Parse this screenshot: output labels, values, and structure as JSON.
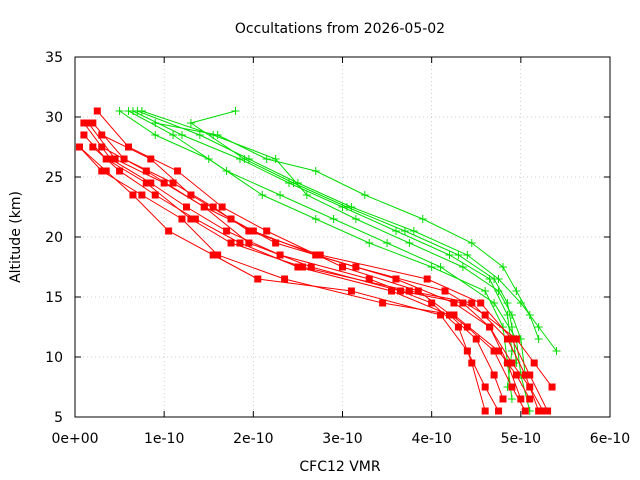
{
  "chart_data": {
    "type": "line",
    "title": "Occultations from 2026-05-02",
    "xlabel": "CFC12 VMR",
    "ylabel": "Altitude (km)",
    "xlim": [
      0,
      6e-10
    ],
    "ylim": [
      5,
      35
    ],
    "x_ticks": [
      "0e+00",
      "1e-10",
      "2e-10",
      "3e-10",
      "4e-10",
      "5e-10",
      "6e-10"
    ],
    "x_tick_values": [
      0,
      1e-10,
      2e-10,
      3e-10,
      4e-10,
      5e-10,
      6e-10
    ],
    "y_ticks": [
      "5",
      "10",
      "15",
      "20",
      "25",
      "30",
      "35"
    ],
    "y_tick_values": [
      5,
      10,
      15,
      20,
      25,
      30,
      35
    ],
    "grid": true,
    "colors": {
      "red_series": "#ff0000",
      "green_series": "#00dd00",
      "axes": "#000000"
    },
    "red_series_marker": "square",
    "green_series_marker": "plus",
    "red_series": [
      {
        "x": [
          5.3e-10,
          5.1e-10,
          4.9e-10,
          4.55e-10,
          3.95e-10,
          2.75e-10,
          1.95e-10,
          1.55e-10,
          1.1e-10,
          5.5e-11,
          2e-11
        ],
        "y": [
          5.5,
          8.5,
          11.5,
          14.5,
          16.5,
          18.5,
          20.5,
          22.5,
          24.5,
          26.5,
          29.5
        ]
      },
      {
        "x": [
          5.2e-10,
          5.05e-10,
          4.85e-10,
          4.45e-10,
          3.75e-10,
          2.55e-10,
          1.75e-10,
          1.3e-10,
          8e-11,
          3.5e-11,
          1e-11
        ],
        "y": [
          5.5,
          8.5,
          11.5,
          14.5,
          15.5,
          17.5,
          19.5,
          21.5,
          24.5,
          26.5,
          28.5
        ]
      },
      {
        "x": [
          5.35e-10,
          5.15e-10,
          4.95e-10,
          4.6e-10,
          4.15e-10,
          3.15e-10,
          2.25e-10,
          1.75e-10,
          1.3e-10,
          8.5e-11,
          3e-11
        ],
        "y": [
          7.5,
          9.5,
          11.5,
          13.5,
          15.5,
          17.5,
          19.5,
          21.5,
          23.5,
          26.5,
          28.5
        ]
      },
      {
        "x": [
          5.1e-10,
          4.95e-10,
          4.75e-10,
          4.25e-10,
          3.45e-10,
          2.35e-10,
          1.6e-10,
          1.2e-10,
          7.5e-11,
          3e-11,
          5e-12
        ],
        "y": [
          6.5,
          8.5,
          10.5,
          13.5,
          14.5,
          16.5,
          18.5,
          21.5,
          23.5,
          25.5,
          27.5
        ]
      },
      {
        "x": [
          5e-10,
          4.85e-10,
          4.65e-10,
          4.35e-10,
          3.65e-10,
          2.65e-10,
          1.95e-10,
          1.45e-10,
          1e-10,
          4.5e-11,
          1.5e-11
        ],
        "y": [
          6.5,
          9.5,
          12.5,
          14.5,
          15.5,
          17.5,
          19.5,
          22.5,
          24.5,
          26.5,
          29.5
        ]
      },
      {
        "x": [
          5.05e-10,
          4.9e-10,
          4.7e-10,
          4.4e-10,
          3.85e-10,
          3e-10,
          2.15e-10,
          1.65e-10,
          1.15e-10,
          6e-11,
          2.5e-11
        ],
        "y": [
          5.5,
          7.5,
          10.5,
          12.5,
          15.5,
          17.5,
          20.5,
          22.5,
          25.5,
          27.5,
          30.5
        ]
      },
      {
        "x": [
          4.8e-10,
          4.7e-10,
          4.5e-10,
          4.2e-10,
          3.55e-10,
          2.5e-10,
          1.85e-10,
          1.35e-10,
          9e-11,
          5e-11,
          2e-11
        ],
        "y": [
          6.5,
          8.5,
          11.5,
          13.5,
          15.5,
          17.5,
          19.5,
          21.5,
          23.5,
          25.5,
          27.5
        ]
      },
      {
        "x": [
          4.6e-10,
          4.45e-10,
          4.3e-10,
          4e-10,
          3.3e-10,
          2.3e-10,
          1.7e-10,
          1.25e-10,
          8.5e-11,
          4e-11,
          1e-11
        ],
        "y": [
          5.5,
          9.5,
          12.5,
          14.5,
          16.5,
          18.5,
          20.5,
          22.5,
          24.5,
          26.5,
          29.5
        ]
      },
      {
        "x": [
          4.75e-10,
          4.6e-10,
          4.4e-10,
          4.1e-10,
          3.1e-10,
          2.05e-10,
          1.55e-10,
          1.05e-10,
          6.5e-11,
          3.5e-11,
          5e-12
        ],
        "y": [
          5.5,
          7.5,
          10.5,
          13.5,
          15.5,
          16.5,
          18.5,
          20.5,
          23.5,
          25.5,
          27.5
        ]
      },
      {
        "x": [
          5.25e-10,
          5.1e-10,
          4.9e-10,
          4.65e-10,
          4.25e-10,
          3.6e-10,
          2.7e-10,
          2e-10,
          1.45e-10,
          8e-11,
          3e-11
        ],
        "y": [
          5.5,
          7.5,
          9.5,
          12.5,
          14.5,
          16.5,
          18.5,
          20.5,
          22.5,
          25.5,
          27.5
        ]
      }
    ],
    "green_series": [
      {
        "x": [
          5.1e-10,
          5e-10,
          4.95e-10,
          4.7e-10,
          4.1e-10,
          3.5e-10,
          2.9e-10,
          2.3e-10,
          1.7e-10,
          1.1e-10,
          6e-11
        ],
        "y": [
          5.5,
          8.5,
          11.5,
          14.5,
          17.5,
          19.5,
          21.5,
          23.5,
          25.5,
          28.5,
          30.5
        ]
      },
      {
        "x": [
          4.9e-10,
          4.85e-10,
          4.8e-10,
          4.6e-10,
          4e-10,
          3.3e-10,
          2.7e-10,
          2.1e-10,
          1.5e-10,
          9e-11,
          5e-11
        ],
        "y": [
          6.5,
          9.5,
          12.5,
          15.5,
          17.5,
          19.5,
          21.5,
          23.5,
          26.5,
          28.5,
          30.5
        ]
      },
      {
        "x": [
          5.4e-10,
          5.2e-10,
          5e-10,
          4.75e-10,
          4.4e-10,
          3.8e-10,
          3.1e-10,
          2.5e-10,
          1.95e-10,
          1.4e-10,
          7e-11
        ],
        "y": [
          10.5,
          12.5,
          14.5,
          16.5,
          18.5,
          20.5,
          22.5,
          24.5,
          26.5,
          28.5,
          30.5
        ]
      },
      {
        "x": [
          4.85e-10,
          4.9e-10,
          4.85e-10,
          4.65e-10,
          4.2e-10,
          3.6e-10,
          3e-10,
          2.4e-10,
          1.85e-10,
          1.2e-10,
          6.5e-11
        ],
        "y": [
          7.5,
          10.5,
          13.5,
          16.5,
          18.5,
          20.5,
          22.5,
          24.5,
          26.5,
          28.5,
          30.5
        ]
      },
      {
        "x": [
          5.2e-10,
          5.1e-10,
          4.95e-10,
          4.8e-10,
          4.45e-10,
          3.9e-10,
          3.25e-10,
          2.7e-10,
          2.15e-10,
          1.6e-10,
          9e-11
        ],
        "y": [
          11.5,
          13.5,
          15.5,
          17.5,
          19.5,
          21.5,
          23.5,
          25.5,
          26.5,
          28.5,
          29.5
        ]
      },
      {
        "x": [
          4.95e-10,
          4.9e-10,
          4.85e-10,
          4.7e-10,
          4.3e-10,
          3.7e-10,
          3.05e-10,
          2.45e-10,
          1.9e-10,
          1.3e-10,
          1.8e-10
        ],
        "y": [
          9.5,
          12.5,
          14.5,
          16.5,
          18.5,
          20.5,
          22.5,
          24.5,
          26.5,
          29.5,
          30.5
        ]
      },
      {
        "x": [
          5.05e-10,
          5e-10,
          4.9e-10,
          4.75e-10,
          4.35e-10,
          3.75e-10,
          3.15e-10,
          2.6e-10,
          2.25e-10,
          1.55e-10,
          7.5e-11
        ],
        "y": [
          8.5,
          11.5,
          13.5,
          15.5,
          17.5,
          19.5,
          21.5,
          23.5,
          26.5,
          28.5,
          30.5
        ]
      }
    ]
  }
}
